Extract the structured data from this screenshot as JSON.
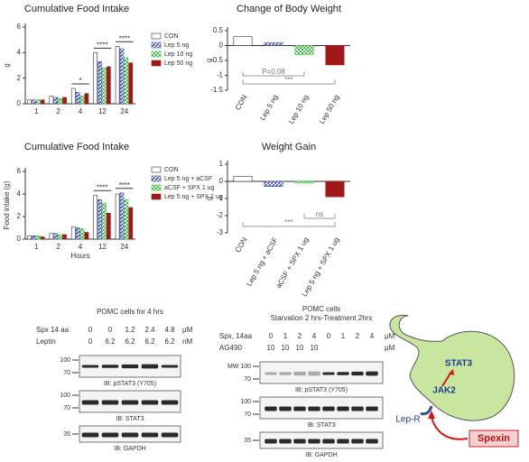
{
  "chart_data": [
    {
      "type": "bar",
      "title": "Cumulative Food Intake",
      "ylabel": "g",
      "categories": [
        "1",
        "2",
        "4",
        "12",
        "24"
      ],
      "series": [
        {
          "name": "CON",
          "color": "#ffffff",
          "pattern": "solid",
          "values": [
            0.3,
            0.6,
            1.2,
            4.0,
            4.5
          ]
        },
        {
          "name": "Lep 5 ng",
          "color": "#3a4fc0",
          "pattern": "hatch",
          "values": [
            0.3,
            0.5,
            0.9,
            3.3,
            4.3
          ]
        },
        {
          "name": "Lep 10 ng",
          "color": "#3cc43c",
          "pattern": "dots",
          "values": [
            0.3,
            0.4,
            0.6,
            2.8,
            3.6
          ]
        },
        {
          "name": "Lep 50 ng",
          "color": "#a01818",
          "pattern": "solid",
          "values": [
            0.3,
            0.5,
            0.8,
            2.9,
            3.2
          ]
        }
      ],
      "ylim": [
        0,
        6
      ],
      "yticks": [
        0,
        2,
        4,
        6
      ],
      "legend": "right",
      "annotations": [
        {
          "text": "*",
          "from": "4",
          "to": "4"
        },
        {
          "text": "****",
          "from": "12",
          "to": "12"
        },
        {
          "text": "****",
          "from": "24",
          "to": "24"
        }
      ]
    },
    {
      "type": "bar",
      "title": "Change of Body Weight",
      "ylabel": "g",
      "categories": [
        "CON",
        "Lep 5 ng",
        "Lep 10 ng",
        "Lep 50 ng"
      ],
      "values": [
        0.3,
        0.1,
        -0.3,
        -0.65
      ],
      "colors": [
        "#ffffff",
        "#3a4fc0",
        "#3cc43c",
        "#a01818"
      ],
      "patterns": [
        "solid",
        "hatch",
        "dots",
        "solid"
      ],
      "ylim": [
        -1.5,
        0.5
      ],
      "yticks": [
        0.5,
        0,
        -0.5,
        -1,
        -1.5
      ],
      "annotations": [
        {
          "text": "P=0.08",
          "from": "CON",
          "to": "Lep 10 ng"
        },
        {
          "text": "***",
          "from": "CON",
          "to": "Lep 50 ng"
        }
      ]
    },
    {
      "type": "bar",
      "title": "Cumulative Food Intake",
      "ylabel": "Food intake (g)",
      "xlabel": "Hours",
      "categories": [
        "1",
        "2",
        "4",
        "12",
        "24"
      ],
      "series": [
        {
          "name": "CON",
          "color": "#ffffff",
          "pattern": "solid",
          "values": [
            0.3,
            0.5,
            1.1,
            3.9,
            4.0
          ]
        },
        {
          "name": "Lep 5 ng + aCSF",
          "color": "#3a4fc0",
          "pattern": "hatch",
          "values": [
            0.3,
            0.5,
            1.0,
            3.5,
            4.1
          ]
        },
        {
          "name": "aCSF + SPX 1 ug",
          "color": "#3cc43c",
          "pattern": "dots",
          "values": [
            0.3,
            0.4,
            0.9,
            3.2,
            3.5
          ]
        },
        {
          "name": "Lep 5 ng + SPX 1 ug",
          "color": "#a01818",
          "pattern": "solid",
          "values": [
            0.2,
            0.4,
            0.6,
            2.3,
            2.8
          ]
        }
      ],
      "ylim": [
        0,
        6
      ],
      "yticks": [
        0,
        2,
        4,
        6
      ],
      "legend": "right",
      "annotations": [
        {
          "text": "****",
          "from": "12",
          "to": "12"
        },
        {
          "text": "****",
          "from": "24",
          "to": "24"
        }
      ]
    },
    {
      "type": "bar",
      "title": "Weight Gain",
      "ylabel": "g",
      "categories": [
        "CON",
        "Lep 5 ng + aCSF",
        "aCSF + SPX 1 ug",
        "Lep 5 ng + SPX 1 ug"
      ],
      "values": [
        0.3,
        -0.3,
        -0.1,
        -0.9
      ],
      "colors": [
        "#ffffff",
        "#3a4fc0",
        "#3cc43c",
        "#a01818"
      ],
      "patterns": [
        "solid",
        "hatch",
        "dots",
        "solid"
      ],
      "ylim": [
        -3,
        1
      ],
      "yticks": [
        1,
        0,
        -1,
        -2,
        -3
      ],
      "annotations": [
        {
          "text": "ns",
          "from": "aCSF + SPX 1 ug",
          "to": "Lep 5 ng + SPX 1 ug"
        },
        {
          "text": "***",
          "from": "CON",
          "to": "Lep 5 ng + SPX 1 ug"
        }
      ]
    }
  ],
  "blots": [
    {
      "title": [
        "POMC cells for 4 hrs"
      ],
      "conditions": [
        {
          "name": "Spx 14 aa",
          "values": [
            0,
            0,
            1.2,
            2.4,
            4.8
          ],
          "unit": "μM"
        },
        {
          "name": "Leptin",
          "values": [
            0,
            6.2,
            6.2,
            6.2,
            6.2
          ],
          "unit": "nM"
        }
      ],
      "panels": [
        {
          "markers": [
            "100",
            "70"
          ],
          "label": "IB: pSTAT3 (Y705)"
        },
        {
          "markers": [
            "100",
            "70"
          ],
          "label": "IB: STAT3"
        },
        {
          "markers": [
            "35"
          ],
          "label": "IB: GAPDH"
        }
      ]
    },
    {
      "title": [
        "POMC cells",
        "Starvation 2 hrs-Treatment 2hrs"
      ],
      "conditions": [
        {
          "name": "Spx, 14aa",
          "values": [
            0,
            1,
            2,
            4,
            0,
            1,
            2,
            4
          ],
          "unit": "μM"
        },
        {
          "name": "AG490",
          "values": [
            10,
            10,
            10,
            10
          ],
          "unit": "μM"
        }
      ],
      "panels": [
        {
          "markers": [
            "MW 100",
            "70"
          ],
          "label": "IB: pSTAT3 (Y705)"
        },
        {
          "markers": [
            "100",
            "70"
          ],
          "label": "IB: STAT3"
        },
        {
          "markers": [
            "35"
          ],
          "label": "IB: GAPDH"
        }
      ]
    }
  ],
  "diagram": {
    "stat": "STAT3",
    "jak": "JAK2",
    "receptor": "Lep-R",
    "ligand": "Spexin"
  }
}
